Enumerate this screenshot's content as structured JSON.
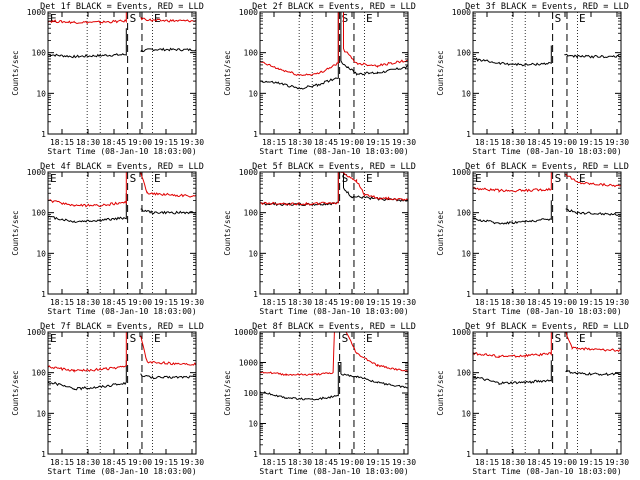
{
  "figure": {
    "background": "#ffffff",
    "axis_color": "#000000",
    "events_color": "#000000",
    "lld_color": "#e00000"
  },
  "chart_data": [
    {
      "id": "det1",
      "type": "line",
      "title": "Det 1f BLACK = Events, RED = LLD",
      "ylabel": "Counts/sec",
      "xlabel": "Start Time (08-Jan-10 18:03:00)",
      "yscale": "log",
      "ylim": [
        1,
        1000
      ],
      "xlim": [
        18.05,
        18.617
      ],
      "ytick_labels": [
        "1",
        "10",
        "100",
        "1000"
      ],
      "xtick_labels": [
        "18:15",
        "18:30",
        "18:45",
        "19:00",
        "19:15",
        "19:30"
      ],
      "markers": [
        {
          "label": "E",
          "x": 18.05
        },
        {
          "label": "S",
          "x": 18.355
        },
        {
          "label": "E",
          "x": 18.47
        }
      ],
      "gap": [
        18.355,
        18.405
      ],
      "series": [
        {
          "name": "Events",
          "color": "#000000",
          "before_gap": [
            [
              18.05,
              90
            ],
            [
              18.15,
              80
            ],
            [
              18.25,
              85
            ],
            [
              18.35,
              90
            ]
          ],
          "spike": 400,
          "after_gap": [
            [
              18.405,
              110
            ],
            [
              18.45,
              120
            ],
            [
              18.617,
              118
            ]
          ]
        },
        {
          "name": "LLD",
          "color": "#e00000",
          "before_gap": [
            [
              18.05,
              600
            ],
            [
              18.15,
              560
            ],
            [
              18.25,
              560
            ],
            [
              18.35,
              600
            ]
          ],
          "spike": 1000,
          "after_gap": [
            [
              18.405,
              700
            ],
            [
              18.45,
              620
            ],
            [
              18.617,
              600
            ]
          ]
        }
      ]
    },
    {
      "id": "det2",
      "type": "line",
      "title": "Det 2f BLACK = Events, RED = LLD",
      "ylabel": "Counts/sec",
      "xlabel": "Start Time (08-Jan-10 18:03:00)",
      "yscale": "log",
      "ylim": [
        1,
        1000
      ],
      "xlim": [
        18.05,
        18.617
      ],
      "ytick_labels": [
        "1",
        "10",
        "100",
        "1000"
      ],
      "xtick_labels": [
        "18:15",
        "18:30",
        "18:45",
        "19:00",
        "19:15",
        "19:30"
      ],
      "markers": [
        {
          "label": "S",
          "x": 18.355
        },
        {
          "label": "E",
          "x": 18.47
        }
      ],
      "gap": [],
      "series": [
        {
          "name": "Events",
          "color": "#000000",
          "before_gap": [
            [
              18.05,
              20
            ],
            [
              18.12,
              18
            ],
            [
              18.2,
              13
            ],
            [
              18.27,
              16
            ],
            [
              18.35,
              25
            ]
          ],
          "spike": 1000,
          "after_gap": [
            [
              18.36,
              60
            ],
            [
              18.42,
              30
            ],
            [
              18.5,
              32
            ],
            [
              18.617,
              45
            ]
          ]
        },
        {
          "name": "LLD",
          "color": "#e00000",
          "before_gap": [
            [
              18.05,
              60
            ],
            [
              18.12,
              40
            ],
            [
              18.2,
              28
            ],
            [
              18.27,
              30
            ],
            [
              18.35,
              55
            ]
          ],
          "spike": 1000,
          "after_gap": [
            [
              18.37,
              120
            ],
            [
              18.42,
              55
            ],
            [
              18.5,
              48
            ],
            [
              18.617,
              65
            ]
          ]
        }
      ]
    },
    {
      "id": "det3",
      "type": "line",
      "title": "Det 3f BLACK = Events, RED = LLD",
      "ylabel": "Counts/sec",
      "xlabel": "Start Time (08-Jan-10 18:03:00)",
      "yscale": "log",
      "ylim": [
        1,
        1000
      ],
      "xlim": [
        18.05,
        18.617
      ],
      "ytick_labels": [
        "1",
        "10",
        "100",
        "1000"
      ],
      "xtick_labels": [
        "18:15",
        "18:30",
        "18:45",
        "19:00",
        "19:15",
        "19:30"
      ],
      "markers": [
        {
          "label": "S",
          "x": 18.355
        },
        {
          "label": "E",
          "x": 18.47
        }
      ],
      "gap": [
        18.355,
        18.4
      ],
      "series": [
        {
          "name": "Events",
          "color": "#000000",
          "before_gap": [
            [
              18.05,
              70
            ],
            [
              18.15,
              55
            ],
            [
              18.25,
              50
            ],
            [
              18.35,
              55
            ]
          ],
          "spike": 150,
          "after_gap": [
            [
              18.4,
              90
            ],
            [
              18.45,
              80
            ],
            [
              18.617,
              80
            ]
          ]
        }
      ]
    },
    {
      "id": "det4",
      "type": "line",
      "title": "Det 4f BLACK = Events, RED = LLD",
      "ylabel": "Counts/sec",
      "xlabel": "Start Time (08-Jan-10 18:03:00)",
      "yscale": "log",
      "ylim": [
        1,
        1000
      ],
      "xlim": [
        18.05,
        18.617
      ],
      "ytick_labels": [
        "1",
        "10",
        "100",
        "1000"
      ],
      "xtick_labels": [
        "18:15",
        "18:30",
        "18:45",
        "19:00",
        "19:15",
        "19:30"
      ],
      "markers": [
        {
          "label": "E",
          "x": 18.05
        },
        {
          "label": "S",
          "x": 18.355
        },
        {
          "label": "E",
          "x": 18.47
        }
      ],
      "gap": [
        18.355,
        18.405
      ],
      "series": [
        {
          "name": "Events",
          "color": "#000000",
          "before_gap": [
            [
              18.05,
              80
            ],
            [
              18.15,
              60
            ],
            [
              18.25,
              65
            ],
            [
              18.35,
              75
            ]
          ],
          "spike": 300,
          "after_gap": [
            [
              18.405,
              120
            ],
            [
              18.45,
              100
            ],
            [
              18.617,
              100
            ]
          ]
        },
        {
          "name": "LLD",
          "color": "#e00000",
          "before_gap": [
            [
              18.05,
              200
            ],
            [
              18.15,
              150
            ],
            [
              18.25,
              150
            ],
            [
              18.35,
              180
            ]
          ],
          "spike": 1000,
          "after_gap": [
            [
              18.405,
              1000
            ],
            [
              18.43,
              300
            ],
            [
              18.617,
              250
            ]
          ]
        }
      ]
    },
    {
      "id": "det5",
      "type": "line",
      "title": "Det 5f BLACK = Events, RED = LLD",
      "ylabel": "Counts/sec",
      "xlabel": "Start Time (08-Jan-10 18:03:00)",
      "yscale": "log",
      "ylim": [
        1,
        1000
      ],
      "xlim": [
        18.05,
        18.617
      ],
      "ytick_labels": [
        "1",
        "10",
        "100",
        "1000"
      ],
      "xtick_labels": [
        "18:15",
        "18:30",
        "18:45",
        "19:00",
        "19:15",
        "19:30"
      ],
      "markers": [
        {
          "label": "S",
          "x": 18.355
        },
        {
          "label": "E",
          "x": 18.47
        }
      ],
      "gap": [],
      "series": [
        {
          "name": "Events",
          "color": "#000000",
          "before_gap": [
            [
              18.05,
              165
            ],
            [
              18.15,
              160
            ],
            [
              18.25,
              160
            ],
            [
              18.35,
              170
            ]
          ],
          "spike": 1000,
          "after_gap": [
            [
              18.37,
              400
            ],
            [
              18.4,
              250
            ],
            [
              18.5,
              220
            ],
            [
              18.617,
              200
            ]
          ]
        },
        {
          "name": "LLD",
          "color": "#e00000",
          "before_gap": [
            [
              18.05,
              170
            ],
            [
              18.15,
              165
            ],
            [
              18.25,
              165
            ],
            [
              18.35,
              175
            ]
          ],
          "spike": 1000,
          "after_gap": [
            [
              18.36,
              1000
            ],
            [
              18.42,
              600
            ],
            [
              18.45,
              280
            ],
            [
              18.5,
              230
            ],
            [
              18.617,
              210
            ]
          ]
        }
      ]
    },
    {
      "id": "det6",
      "type": "line",
      "title": "Det 6f BLACK = Events, RED = LLD",
      "ylabel": "Counts/sec",
      "xlabel": "Start Time (08-Jan-10 18:03:00)",
      "yscale": "log",
      "ylim": [
        1,
        1000
      ],
      "xlim": [
        18.05,
        18.617
      ],
      "ytick_labels": [
        "1",
        "10",
        "100",
        "1000"
      ],
      "xtick_labels": [
        "18:15",
        "18:30",
        "18:45",
        "19:00",
        "19:15",
        "19:30"
      ],
      "markers": [
        {
          "label": "E",
          "x": 18.05
        },
        {
          "label": "S",
          "x": 18.355
        },
        {
          "label": "E",
          "x": 18.47
        }
      ],
      "gap": [
        18.355,
        18.405
      ],
      "series": [
        {
          "name": "Events",
          "color": "#000000",
          "before_gap": [
            [
              18.05,
              70
            ],
            [
              18.15,
              55
            ],
            [
              18.25,
              60
            ],
            [
              18.35,
              70
            ]
          ],
          "spike": 200,
          "after_gap": [
            [
              18.405,
              120
            ],
            [
              18.45,
              100
            ],
            [
              18.617,
              90
            ]
          ]
        },
        {
          "name": "LLD",
          "color": "#e00000",
          "before_gap": [
            [
              18.05,
              400
            ],
            [
              18.15,
              350
            ],
            [
              18.25,
              350
            ],
            [
              18.35,
              380
            ]
          ],
          "spike": 1000,
          "after_gap": [
            [
              18.405,
              900
            ],
            [
              18.45,
              550
            ],
            [
              18.617,
              450
            ]
          ]
        }
      ]
    },
    {
      "id": "det7",
      "type": "line",
      "title": "Det 7f BLACK = Events, RED = LLD",
      "ylabel": "Counts/sec",
      "xlabel": "Start Time (08-Jan-10 18:03:00)",
      "yscale": "log",
      "ylim": [
        1,
        1000
      ],
      "xlim": [
        18.05,
        18.617
      ],
      "ytick_labels": [
        "1",
        "10",
        "100",
        "1000"
      ],
      "xtick_labels": [
        "18:15",
        "18:30",
        "18:45",
        "19:00",
        "19:15",
        "19:30"
      ],
      "markers": [
        {
          "label": "E",
          "x": 18.05
        },
        {
          "label": "S",
          "x": 18.355
        },
        {
          "label": "E",
          "x": 18.47
        }
      ],
      "gap": [
        18.355,
        18.405
      ],
      "series": [
        {
          "name": "Events",
          "color": "#000000",
          "before_gap": [
            [
              18.05,
              60
            ],
            [
              18.15,
              40
            ],
            [
              18.25,
              45
            ],
            [
              18.35,
              55
            ]
          ],
          "spike": 200,
          "after_gap": [
            [
              18.405,
              90
            ],
            [
              18.45,
              75
            ],
            [
              18.617,
              80
            ]
          ]
        },
        {
          "name": "LLD",
          "color": "#e00000",
          "before_gap": [
            [
              18.05,
              140
            ],
            [
              18.15,
              110
            ],
            [
              18.25,
              120
            ],
            [
              18.35,
              140
            ]
          ],
          "spike": 1000,
          "after_gap": [
            [
              18.405,
              800
            ],
            [
              18.43,
              180
            ],
            [
              18.617,
              160
            ]
          ]
        }
      ]
    },
    {
      "id": "det8",
      "type": "line",
      "title": "Det 8f BLACK = Events, RED = LLD",
      "ylabel": "Counts/sec",
      "xlabel": "Start Time (08-Jan-10 18:03:00)",
      "yscale": "log",
      "ylim": [
        1,
        10000
      ],
      "xlim": [
        18.05,
        18.617
      ],
      "ytick_labels": [
        "1",
        "10",
        "100",
        "1000",
        "10000"
      ],
      "xtick_labels": [
        "18:15",
        "18:30",
        "18:45",
        "19:00",
        "19:15",
        "19:30"
      ],
      "markers": [
        {
          "label": "S",
          "x": 18.355
        },
        {
          "label": "E",
          "x": 18.47
        }
      ],
      "gap": [],
      "series": [
        {
          "name": "Events",
          "color": "#000000",
          "before_gap": [
            [
              18.05,
              110
            ],
            [
              18.15,
              70
            ],
            [
              18.25,
              60
            ],
            [
              18.35,
              80
            ]
          ],
          "spike": 1000,
          "after_gap": [
            [
              18.36,
              400
            ],
            [
              18.42,
              350
            ],
            [
              18.5,
              220
            ],
            [
              18.617,
              150
            ]
          ]
        },
        {
          "name": "LLD",
          "color": "#e00000",
          "before_gap": [
            [
              18.05,
              500
            ],
            [
              18.15,
              400
            ],
            [
              18.25,
              400
            ],
            [
              18.33,
              450
            ],
            [
              18.335,
              10000
            ]
          ],
          "spike": 10000,
          "after_gap": [
            [
              18.38,
              10000
            ],
            [
              18.42,
              2000
            ],
            [
              18.5,
              800
            ],
            [
              18.617,
              500
            ]
          ]
        }
      ]
    },
    {
      "id": "det9",
      "type": "line",
      "title": "Det 9f BLACK = Events, RED = LLD",
      "ylabel": "Counts/sec",
      "xlabel": "Start Time (08-Jan-10 18:03:00)",
      "yscale": "log",
      "ylim": [
        1,
        1000
      ],
      "xlim": [
        18.05,
        18.617
      ],
      "ytick_labels": [
        "1",
        "10",
        "100",
        "1000"
      ],
      "xtick_labels": [
        "18:15",
        "18:30",
        "18:45",
        "19:00",
        "19:15",
        "19:30"
      ],
      "markers": [
        {
          "label": "S",
          "x": 18.355
        },
        {
          "label": "E",
          "x": 18.47
        }
      ],
      "gap": [
        18.355,
        18.405
      ],
      "series": [
        {
          "name": "Events",
          "color": "#000000",
          "before_gap": [
            [
              18.05,
              80
            ],
            [
              18.15,
              55
            ],
            [
              18.25,
              58
            ],
            [
              18.35,
              65
            ]
          ],
          "spike": 200,
          "after_gap": [
            [
              18.405,
              110
            ],
            [
              18.45,
              95
            ],
            [
              18.617,
              90
            ]
          ]
        },
        {
          "name": "LLD",
          "color": "#e00000",
          "before_gap": [
            [
              18.05,
              300
            ],
            [
              18.15,
              250
            ],
            [
              18.25,
              260
            ],
            [
              18.35,
              290
            ]
          ],
          "spike": 1000,
          "after_gap": [
            [
              18.405,
              1000
            ],
            [
              18.43,
              400
            ],
            [
              18.617,
              350
            ]
          ]
        }
      ]
    }
  ]
}
